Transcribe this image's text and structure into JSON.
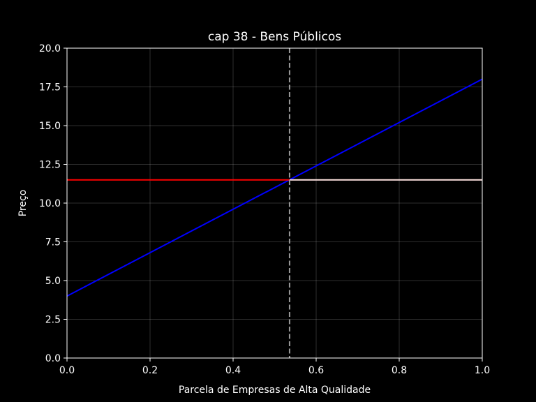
{
  "chart_data": {
    "type": "line",
    "title": "cap 38 - Bens Públicos",
    "xlabel": "Parcela de Empresas de Alta Qualidade",
    "ylabel": "Preço",
    "xlim": [
      0.0,
      1.0
    ],
    "ylim": [
      0.0,
      20.0
    ],
    "xticks": [
      "0.0",
      "0.2",
      "0.4",
      "0.6",
      "0.8",
      "1.0"
    ],
    "yticks": [
      "0.0",
      "2.5",
      "5.0",
      "7.5",
      "10.0",
      "12.5",
      "15.0",
      "17.5",
      "20.0"
    ],
    "grid": true,
    "legend": "none",
    "series": [
      {
        "color": "#0000ff",
        "style": "solid",
        "x": [
          0.0,
          1.0
        ],
        "y": [
          4.0,
          18.0
        ]
      },
      {
        "color": "#ff0000",
        "style": "solid",
        "x": [
          0.0,
          0.536
        ],
        "y": [
          11.5,
          11.5
        ]
      },
      {
        "color": "#ffe4e1",
        "style": "solid",
        "x": [
          0.536,
          1.0
        ],
        "y": [
          11.5,
          11.5
        ]
      }
    ],
    "vlines": [
      {
        "x": 0.536,
        "color": "#999999",
        "style": "dashed"
      }
    ]
  }
}
